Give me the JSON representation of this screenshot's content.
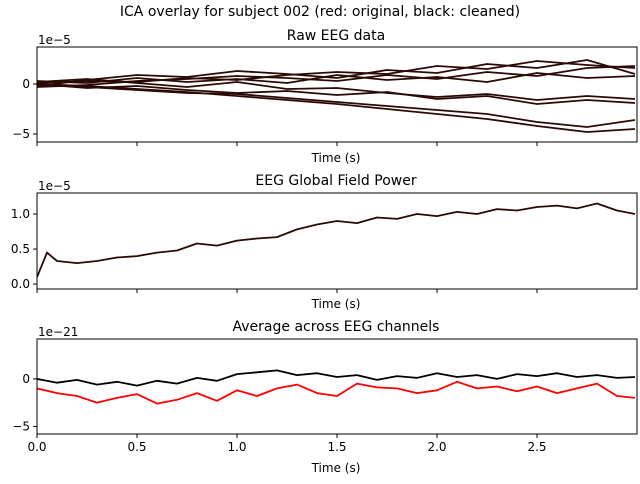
{
  "figure": {
    "suptitle": "ICA overlay for subject 002 (red: original, black: cleaned)"
  },
  "chart_data": [
    {
      "type": "line",
      "title": "Raw EEG data",
      "xlabel": "Time (s)",
      "ylabel": "",
      "offset_text": "1e−5",
      "xlim": [
        0,
        3.0
      ],
      "ylim": [
        -5.8,
        3.7
      ],
      "yticks": [
        -5,
        0
      ],
      "ytick_labels": [
        "−5",
        "0"
      ],
      "xticks": [
        0,
        0.5,
        1.0,
        1.5,
        2.0,
        2.5
      ],
      "xtick_labels_visible": false,
      "series_note": "many EEG channels overlaid; dark traces",
      "series": [
        {
          "x": [
            0,
            0.25,
            0.5,
            0.75,
            1.0,
            1.25,
            1.5,
            1.75,
            2.0,
            2.25,
            2.5,
            2.75,
            2.99
          ],
          "y": [
            0.1,
            0.3,
            0.2,
            0.6,
            0.4,
            0.9,
            1.2,
            1.0,
            1.8,
            1.5,
            2.3,
            1.9,
            1.6
          ]
        },
        {
          "x": [
            0,
            0.25,
            0.5,
            0.75,
            1.0,
            1.25,
            1.5,
            1.75,
            2.0,
            2.25,
            2.5,
            2.75,
            2.99
          ],
          "y": [
            -0.2,
            0.4,
            0.9,
            0.7,
            1.3,
            1.0,
            0.6,
            1.4,
            1.1,
            2.0,
            1.6,
            2.4,
            1.0
          ]
        },
        {
          "x": [
            0,
            0.25,
            0.5,
            0.75,
            1.0,
            1.25,
            1.5,
            1.75,
            2.0,
            2.25,
            2.5,
            2.75,
            2.99
          ],
          "y": [
            0.0,
            -0.2,
            -0.5,
            -0.8,
            -1.2,
            -1.6,
            -2.0,
            -2.5,
            -3.0,
            -3.5,
            -4.2,
            -4.8,
            -4.5
          ]
        },
        {
          "x": [
            0,
            0.25,
            0.5,
            0.75,
            1.0,
            1.25,
            1.5,
            1.75,
            2.0,
            2.25,
            2.5,
            2.75,
            2.99
          ],
          "y": [
            -0.1,
            -0.3,
            -0.6,
            -0.9,
            -1.0,
            -1.4,
            -1.8,
            -2.2,
            -2.6,
            -3.0,
            -3.8,
            -4.3,
            -3.6
          ]
        },
        {
          "x": [
            0,
            0.25,
            0.5,
            0.75,
            1.0,
            1.25,
            1.5,
            1.75,
            2.0,
            2.25,
            2.5,
            2.75,
            2.99
          ],
          "y": [
            0.2,
            0.5,
            0.1,
            -0.3,
            0.2,
            -0.5,
            -0.4,
            -0.9,
            -1.3,
            -1.0,
            -1.6,
            -1.2,
            -1.5
          ]
        },
        {
          "x": [
            0,
            0.25,
            0.5,
            0.75,
            1.0,
            1.25,
            1.5,
            1.75,
            2.0,
            2.25,
            2.5,
            2.75,
            2.99
          ],
          "y": [
            -0.3,
            -0.1,
            0.3,
            0.5,
            0.8,
            0.6,
            0.3,
            0.9,
            0.5,
            1.2,
            0.8,
            1.6,
            1.8
          ]
        },
        {
          "x": [
            0,
            0.25,
            0.5,
            0.75,
            1.0,
            1.25,
            1.5,
            1.75,
            2.0,
            2.25,
            2.5,
            2.75,
            2.99
          ],
          "y": [
            0.0,
            -0.4,
            -0.2,
            -0.6,
            -0.9,
            -0.7,
            -1.1,
            -0.8,
            -1.5,
            -1.2,
            -2.0,
            -1.6,
            -1.9
          ]
        },
        {
          "x": [
            0,
            0.25,
            0.5,
            0.75,
            1.0,
            1.25,
            1.5,
            1.75,
            2.0,
            2.25,
            2.5,
            2.75,
            2.99
          ],
          "y": [
            0.3,
            0.1,
            0.6,
            0.2,
            0.5,
            0.1,
            0.9,
            0.4,
            0.7,
            0.2,
            1.1,
            0.6,
            0.8
          ]
        }
      ]
    },
    {
      "type": "line",
      "title": "EEG Global Field Power",
      "xlabel": "Time (s)",
      "ylabel": "",
      "offset_text": "1e−5",
      "xlim": [
        0,
        3.0
      ],
      "ylim": [
        -0.07,
        1.3
      ],
      "yticks": [
        0.0,
        0.5,
        1.0
      ],
      "ytick_labels": [
        "0.0",
        "0.5",
        "1.0"
      ],
      "xticks": [
        0,
        0.5,
        1.0,
        1.5,
        2.0,
        2.5
      ],
      "xtick_labels_visible": false,
      "series": [
        {
          "x": [
            0,
            0.05,
            0.1,
            0.2,
            0.3,
            0.4,
            0.5,
            0.6,
            0.7,
            0.8,
            0.9,
            1.0,
            1.1,
            1.2,
            1.3,
            1.4,
            1.5,
            1.6,
            1.7,
            1.8,
            1.9,
            2.0,
            2.1,
            2.2,
            2.3,
            2.4,
            2.5,
            2.6,
            2.7,
            2.8,
            2.9,
            2.99
          ],
          "y": [
            0.1,
            0.45,
            0.33,
            0.3,
            0.33,
            0.38,
            0.4,
            0.45,
            0.48,
            0.58,
            0.55,
            0.62,
            0.65,
            0.67,
            0.78,
            0.85,
            0.9,
            0.87,
            0.95,
            0.93,
            1.0,
            0.97,
            1.03,
            1.0,
            1.07,
            1.05,
            1.1,
            1.12,
            1.08,
            1.15,
            1.05,
            1.0
          ]
        }
      ]
    },
    {
      "type": "line",
      "title": "Average across EEG channels",
      "xlabel": "Time (s)",
      "ylabel": "",
      "offset_text": "1e−21",
      "xlim": [
        0,
        3.0
      ],
      "ylim": [
        -5.8,
        4.2
      ],
      "yticks": [
        -5,
        0
      ],
      "ytick_labels": [
        "−5",
        "0"
      ],
      "xticks": [
        0,
        0.5,
        1.0,
        1.5,
        2.0,
        2.5
      ],
      "xtick_labels": [
        "0.0",
        "0.5",
        "1.0",
        "1.5",
        "2.0",
        "2.5"
      ],
      "xtick_labels_visible": true,
      "series": [
        {
          "color": "#ff0000",
          "x": [
            0,
            0.1,
            0.2,
            0.3,
            0.4,
            0.5,
            0.6,
            0.7,
            0.8,
            0.9,
            1.0,
            1.1,
            1.2,
            1.3,
            1.4,
            1.5,
            1.6,
            1.7,
            1.8,
            1.9,
            2.0,
            2.1,
            2.2,
            2.3,
            2.4,
            2.5,
            2.6,
            2.7,
            2.8,
            2.9,
            2.99
          ],
          "y": [
            -1.0,
            -1.5,
            -1.8,
            -2.5,
            -2.0,
            -1.6,
            -2.6,
            -2.2,
            -1.5,
            -2.3,
            -1.2,
            -1.8,
            -1.0,
            -0.6,
            -1.5,
            -1.8,
            -0.5,
            -0.9,
            -1.0,
            -1.5,
            -1.2,
            -0.3,
            -1.0,
            -0.8,
            -1.3,
            -0.8,
            -1.5,
            -1.0,
            -0.5,
            -1.8,
            -2.0
          ]
        },
        {
          "color": "#000000",
          "x": [
            0,
            0.1,
            0.2,
            0.3,
            0.4,
            0.5,
            0.6,
            0.7,
            0.8,
            0.9,
            1.0,
            1.1,
            1.2,
            1.3,
            1.4,
            1.5,
            1.6,
            1.7,
            1.8,
            1.9,
            2.0,
            2.1,
            2.2,
            2.3,
            2.4,
            2.5,
            2.6,
            2.7,
            2.8,
            2.9,
            2.99
          ],
          "y": [
            0.0,
            -0.4,
            -0.1,
            -0.6,
            -0.3,
            -0.7,
            -0.2,
            -0.5,
            0.1,
            -0.2,
            0.5,
            0.7,
            0.9,
            0.4,
            0.6,
            0.2,
            0.4,
            -0.1,
            0.3,
            0.1,
            0.6,
            0.2,
            0.4,
            0.0,
            0.5,
            0.3,
            0.6,
            0.2,
            0.4,
            0.1,
            0.2
          ]
        }
      ]
    }
  ]
}
